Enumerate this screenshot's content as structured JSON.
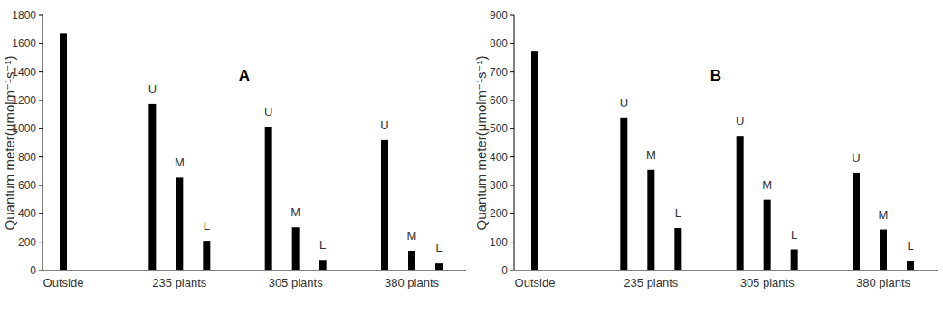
{
  "chart_data": [
    {
      "type": "bar",
      "title": "A",
      "y_label": "Quantum meter(μmolm⁻¹s⁻¹)",
      "categories": [
        "Outside",
        "235 plants",
        "305 plants",
        "380 plants"
      ],
      "series": [
        {
          "color": "#000000",
          "values": [
            1670,
            null,
            null,
            null
          ]
        },
        {
          "name": "U",
          "color": "#000000",
          "values": [
            null,
            1175,
            1015,
            920
          ]
        },
        {
          "name": "M",
          "color": "#000000",
          "values": [
            null,
            655,
            305,
            140
          ]
        },
        {
          "name": "L",
          "color": "#000000",
          "values": [
            null,
            210,
            75,
            50
          ]
        }
      ],
      "ylim": [
        0,
        1800
      ],
      "yticks": [
        0,
        200,
        400,
        600,
        800,
        1000,
        1200,
        1400,
        1600,
        1800
      ],
      "grid": false
    },
    {
      "type": "bar",
      "title": "B",
      "y_label": "Quantum meter(μmolm⁻¹s⁻¹)",
      "categories": [
        "Outside",
        "235 plants",
        "305 plants",
        "380 plants"
      ],
      "series": [
        {
          "color": "#000000",
          "values": [
            775,
            null,
            null,
            null
          ]
        },
        {
          "name": "U",
          "color": "#000000",
          "values": [
            null,
            540,
            475,
            345
          ]
        },
        {
          "name": "M",
          "color": "#000000",
          "values": [
            null,
            355,
            250,
            145
          ]
        },
        {
          "name": "L",
          "color": "#000000",
          "values": [
            null,
            150,
            75,
            35
          ]
        }
      ],
      "ylim": [
        0,
        900
      ],
      "yticks": [
        0,
        100,
        200,
        300,
        400,
        500,
        600,
        700,
        800,
        900
      ],
      "grid": false
    }
  ]
}
